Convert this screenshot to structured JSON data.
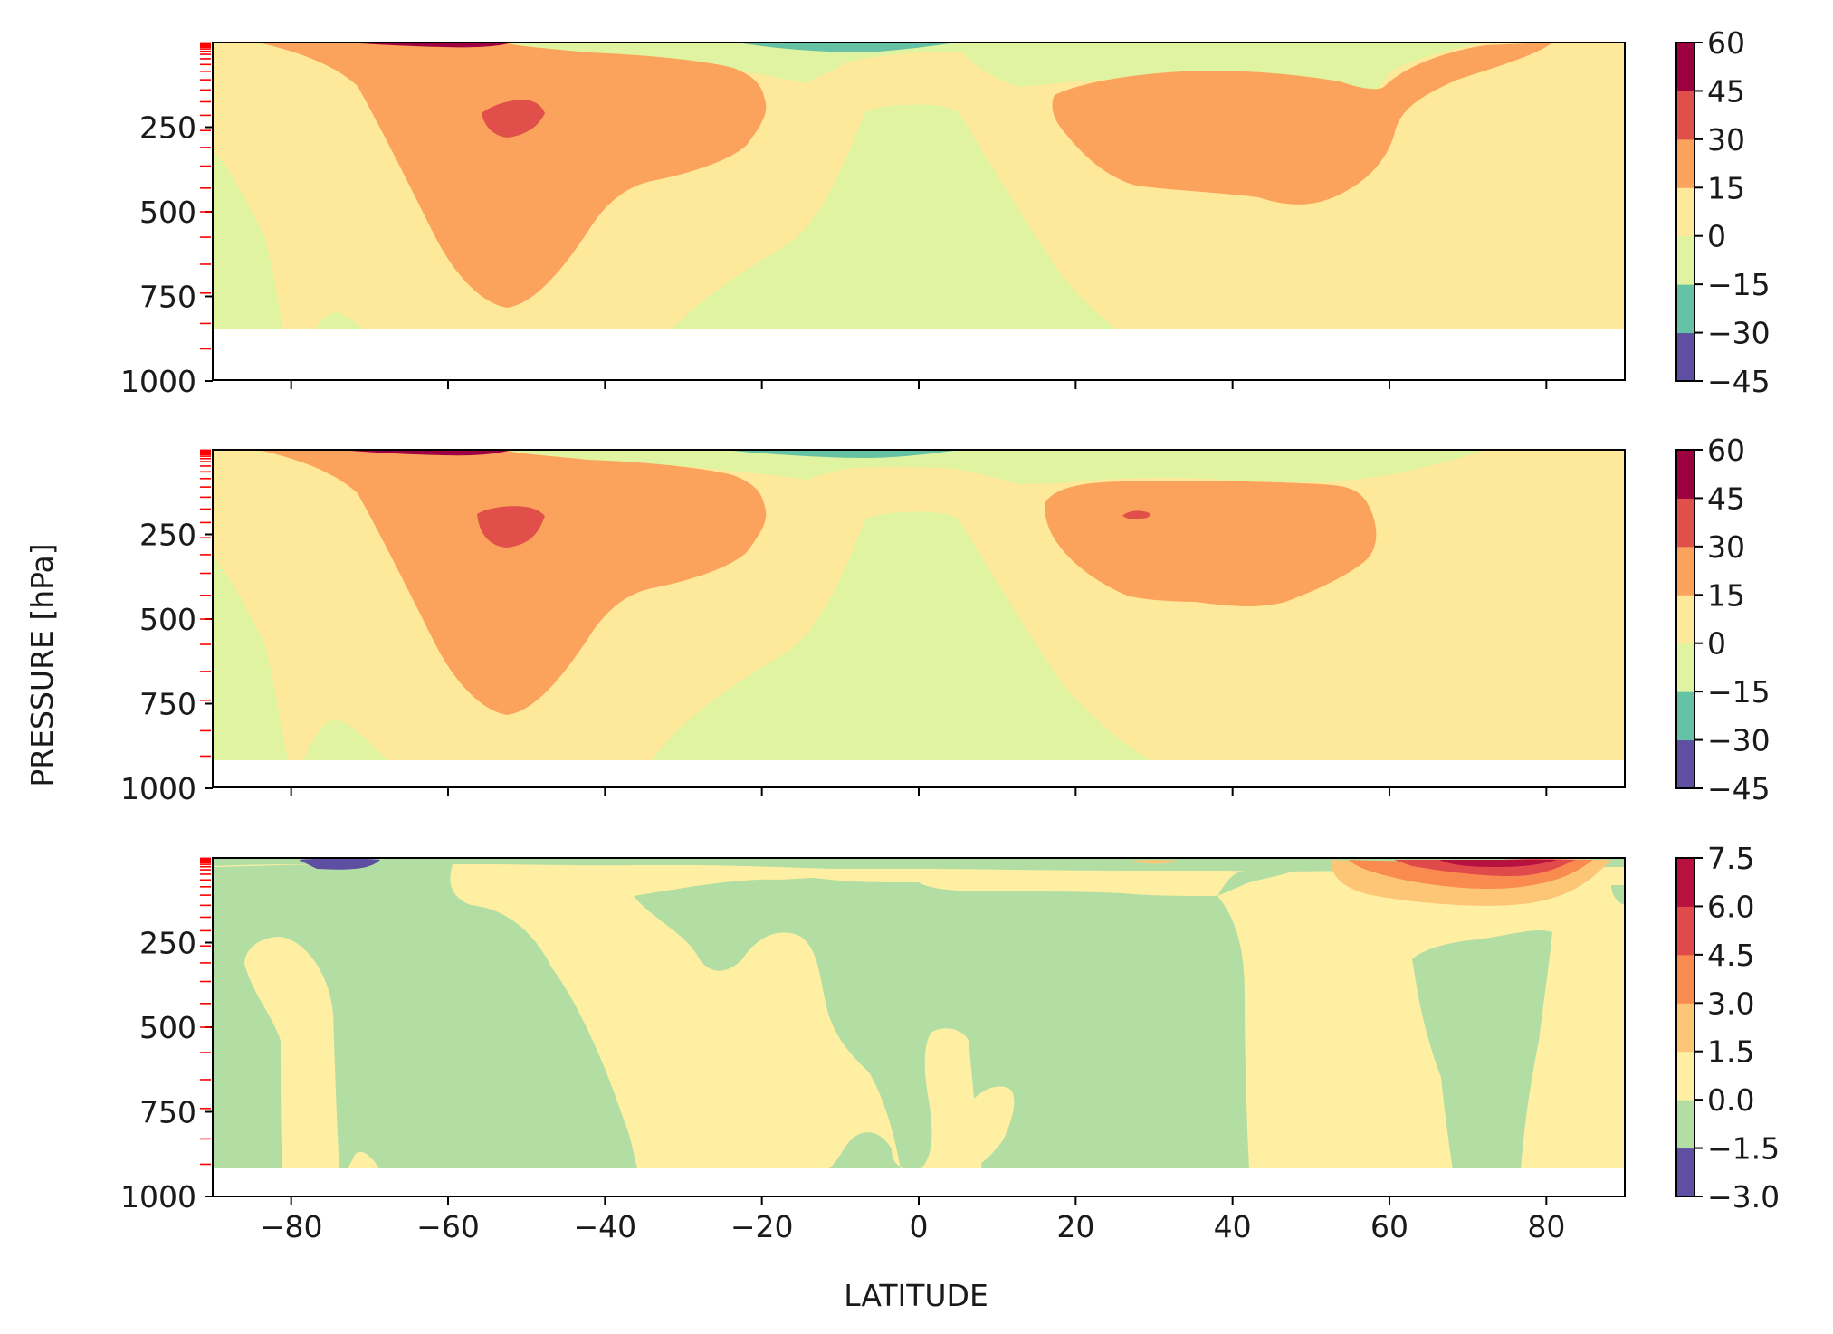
{
  "chart_data": {
    "type": "contour",
    "figure": {
      "ylabel": "PRESSURE [hPa]",
      "xlabel": "LATITUDE"
    },
    "x_axis": {
      "range": [
        -90,
        90
      ],
      "ticks": [
        -80,
        -60,
        -40,
        -20,
        0,
        20,
        40,
        60,
        80
      ],
      "tick_labels": [
        "−80",
        "−60",
        "−40",
        "−20",
        "0",
        "20",
        "40",
        "60",
        "80"
      ]
    },
    "y_axis": {
      "range": [
        1000,
        0
      ],
      "inverted": true,
      "ticks": [
        250,
        500,
        750,
        1000
      ],
      "tick_labels": [
        "250",
        "500",
        "750",
        "1000"
      ],
      "model_level_marker_color": "#ff0000",
      "model_levels_hpa": [
        1,
        3,
        5,
        7,
        10,
        14,
        19,
        26,
        35,
        48,
        65,
        85,
        110,
        140,
        175,
        215,
        260,
        310,
        365,
        430,
        500,
        575,
        655,
        740,
        830,
        905
      ]
    },
    "panels": [
      {
        "id": "top",
        "levels": [
          -45,
          -30,
          -15,
          0,
          15,
          30,
          45,
          60
        ],
        "colorbar_labels": [
          "60",
          "45",
          "30",
          "15",
          "0",
          "−15",
          "−30",
          "−45"
        ],
        "colors": [
          "#5e4fa2",
          "#66c2a5",
          "#e0f3a0",
          "#fee99a",
          "#fba35c",
          "#e04f4a",
          "#9e0142"
        ]
      },
      {
        "id": "middle",
        "levels": [
          -45,
          -30,
          -15,
          0,
          15,
          30,
          45,
          60
        ],
        "colorbar_labels": [
          "60",
          "45",
          "30",
          "15",
          "0",
          "−15",
          "−30",
          "−45"
        ],
        "colors": [
          "#5e4fa2",
          "#66c2a5",
          "#e0f3a0",
          "#fee99a",
          "#fba35c",
          "#e04f4a",
          "#9e0142"
        ]
      },
      {
        "id": "bottom",
        "levels": [
          -3.0,
          -1.5,
          0.0,
          1.5,
          3.0,
          4.5,
          6.0,
          7.5
        ],
        "colorbar_labels": [
          "7.5",
          "6.0",
          "4.5",
          "3.0",
          "1.5",
          "0.0",
          "−1.5",
          "−3.0"
        ],
        "colors": [
          "#5e4fa2",
          "#b2dea4",
          "#feefa2",
          "#fdc677",
          "#f98b51",
          "#e04a4a",
          "#b7123f"
        ]
      }
    ]
  }
}
